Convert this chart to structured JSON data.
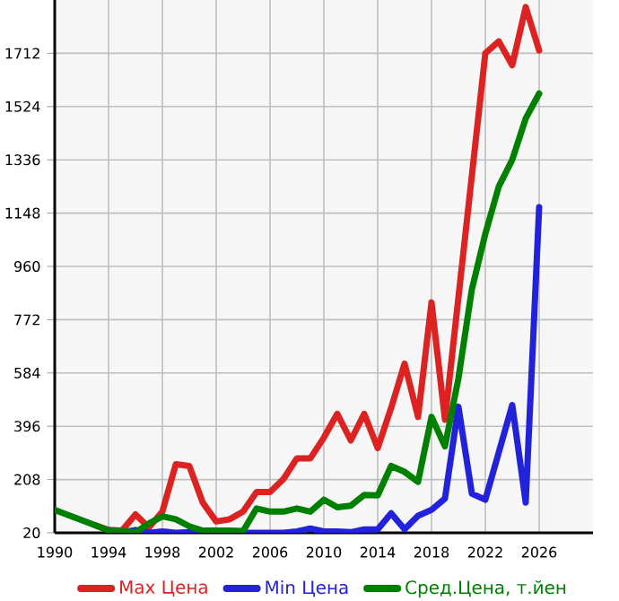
{
  "chart_data": {
    "type": "line",
    "x": [
      1990,
      1991,
      1992,
      1993,
      1994,
      1995,
      1996,
      1997,
      1998,
      1999,
      2000,
      2001,
      2002,
      2003,
      2004,
      2005,
      2006,
      2007,
      2008,
      2009,
      2010,
      2011,
      2012,
      2013,
      2014,
      2015,
      2016,
      2017,
      2018,
      2019,
      2020,
      2021,
      2022,
      2023,
      2024,
      2025,
      2026
    ],
    "series": [
      {
        "name": "Max Цена",
        "color": "#dd2222",
        "values": [
          null,
          null,
          null,
          47,
          30,
          28,
          85,
          39,
          95,
          262,
          256,
          127,
          60,
          68,
          95,
          164,
          164,
          210,
          283,
          283,
          356,
          440,
          346,
          440,
          319,
          461,
          617,
          429,
          833,
          419,
          850,
          1281,
          1712,
          1754,
          1670,
          1875,
          1722
        ]
      },
      {
        "name": "Min Цена",
        "color": "#2222dd",
        "values": [
          null,
          null,
          null,
          null,
          30,
          22,
          30,
          20,
          25,
          20,
          22,
          20,
          20,
          20,
          20,
          20,
          20,
          20,
          25,
          35,
          25,
          25,
          22,
          32,
          32,
          89,
          33,
          80,
          101,
          141,
          465,
          158,
          137,
          304,
          471,
          127,
          1169
        ]
      },
      {
        "name": "Сред.Цена, т.йен",
        "color": "#008000",
        "values": [
          101,
          83,
          65,
          47,
          28,
          26,
          22,
          53,
          78,
          68,
          43,
          28,
          28,
          28,
          26,
          106,
          95,
          95,
          106,
          95,
          137,
          110,
          116,
          154,
          152,
          256,
          235,
          200,
          429,
          325,
          565,
          879,
          1075,
          1242,
          1336,
          1482,
          1570
        ]
      }
    ],
    "xlim": [
      1990,
      2030
    ],
    "xticks": [
      1990,
      1994,
      1998,
      2002,
      2006,
      2010,
      2014,
      2018,
      2022,
      2026
    ],
    "ylim": [
      20,
      1900
    ],
    "yticks": [
      20,
      208,
      396,
      584,
      772,
      960,
      1148,
      1336,
      1524,
      1712
    ],
    "grid": true,
    "legend": "bottom",
    "marker": "none",
    "line_style": "solid"
  }
}
